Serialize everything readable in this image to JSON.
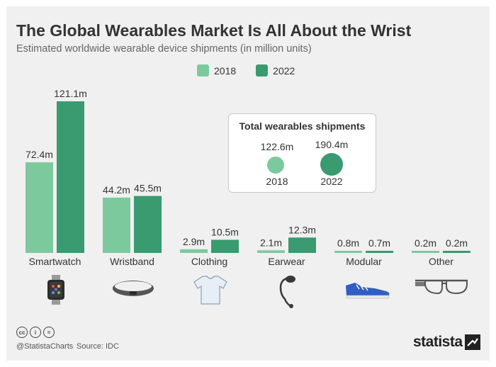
{
  "title": "The Global Wearables Market Is All About the Wrist",
  "subtitle": "Estimated worldwide wearable device shipments (in million units)",
  "legend": [
    {
      "label": "2018",
      "color": "#7dc99e"
    },
    {
      "label": "2022",
      "color": "#3a9a70"
    }
  ],
  "chart_data": {
    "type": "bar",
    "title": "The Global Wearables Market Is All About the Wrist",
    "subtitle": "Estimated worldwide wearable device shipments (in million units)",
    "xlabel": "",
    "ylabel": "",
    "ylim": [
      0,
      121.1
    ],
    "categories": [
      "Smartwatch",
      "Wristband",
      "Clothing",
      "Earwear",
      "Modular",
      "Other"
    ],
    "series": [
      {
        "name": "2018",
        "color": "#7dc99e",
        "values": [
          72.4,
          44.2,
          2.9,
          2.1,
          0.8,
          0.2
        ],
        "labels": [
          "72.4m",
          "44.2m",
          "2.9m",
          "2.1m",
          "0.8m",
          "0.2m"
        ]
      },
      {
        "name": "2022",
        "color": "#3a9a70",
        "values": [
          121.1,
          45.5,
          10.5,
          12.3,
          0.7,
          0.2
        ],
        "labels": [
          "121.1m",
          "45.5m",
          "10.5m",
          "12.3m",
          "0.7m",
          "0.2m"
        ]
      }
    ]
  },
  "totals": {
    "title": "Total wearables shipments",
    "items": [
      {
        "value": "122.6m",
        "year": "2018",
        "color": "#7dc99e"
      },
      {
        "value": "190.4m",
        "year": "2022",
        "color": "#3a9a70"
      }
    ]
  },
  "icons": [
    "smartwatch-icon",
    "wristband-icon",
    "tshirt-icon",
    "earpiece-icon",
    "sneaker-icon",
    "smart-glasses-icon"
  ],
  "footer": {
    "cc_icons": [
      "cc",
      "i",
      "="
    ],
    "handle": "@StatistaCharts",
    "source": "Source: IDC",
    "brand": "statista"
  }
}
